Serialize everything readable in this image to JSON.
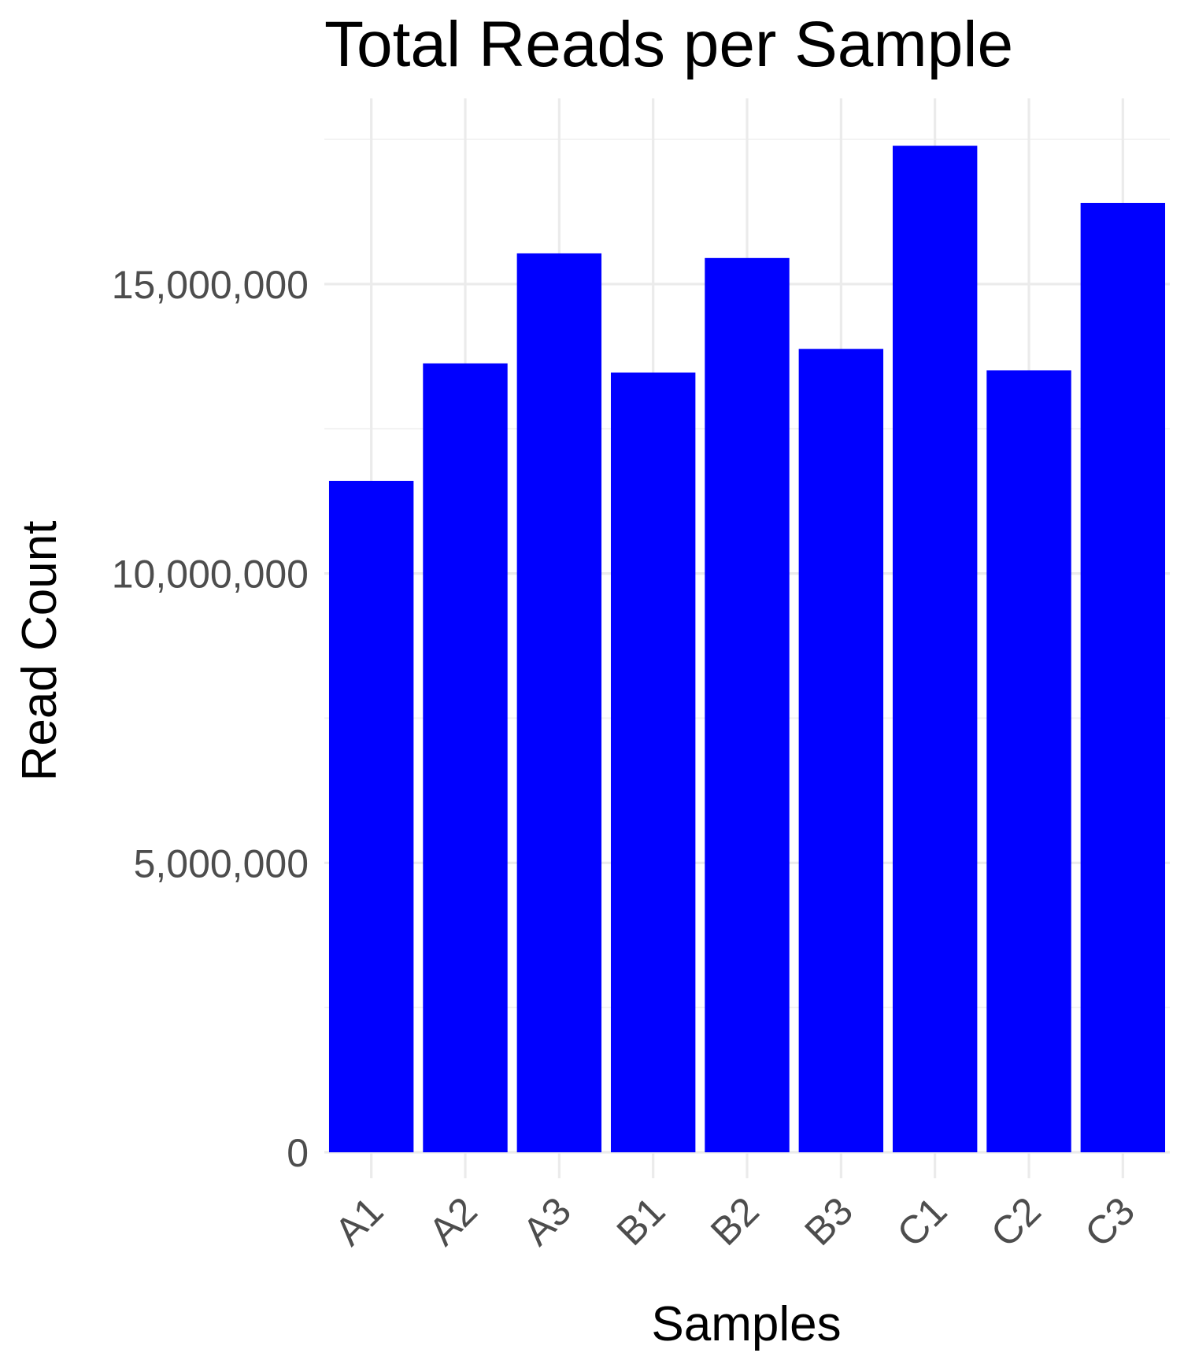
{
  "chart_data": {
    "type": "bar",
    "title": "Total Reads per Sample",
    "xlabel": "Samples",
    "ylabel": "Read Count",
    "categories": [
      "A1",
      "A2",
      "A3",
      "B1",
      "B2",
      "B3",
      "C1",
      "C2",
      "C3"
    ],
    "values": [
      11600000,
      13630000,
      15530000,
      13470000,
      15450000,
      13880000,
      17390000,
      13510000,
      16400000
    ],
    "ylim": [
      0,
      17500000
    ],
    "yticks": [
      0,
      5000000,
      10000000,
      15000000
    ],
    "ytick_labels": [
      "0",
      "5,000,000",
      "10,000,000",
      "15,000,000"
    ],
    "bar_color": "#0000ff",
    "grid": true,
    "x_tick_rotation_deg": 45,
    "legend": "none"
  }
}
